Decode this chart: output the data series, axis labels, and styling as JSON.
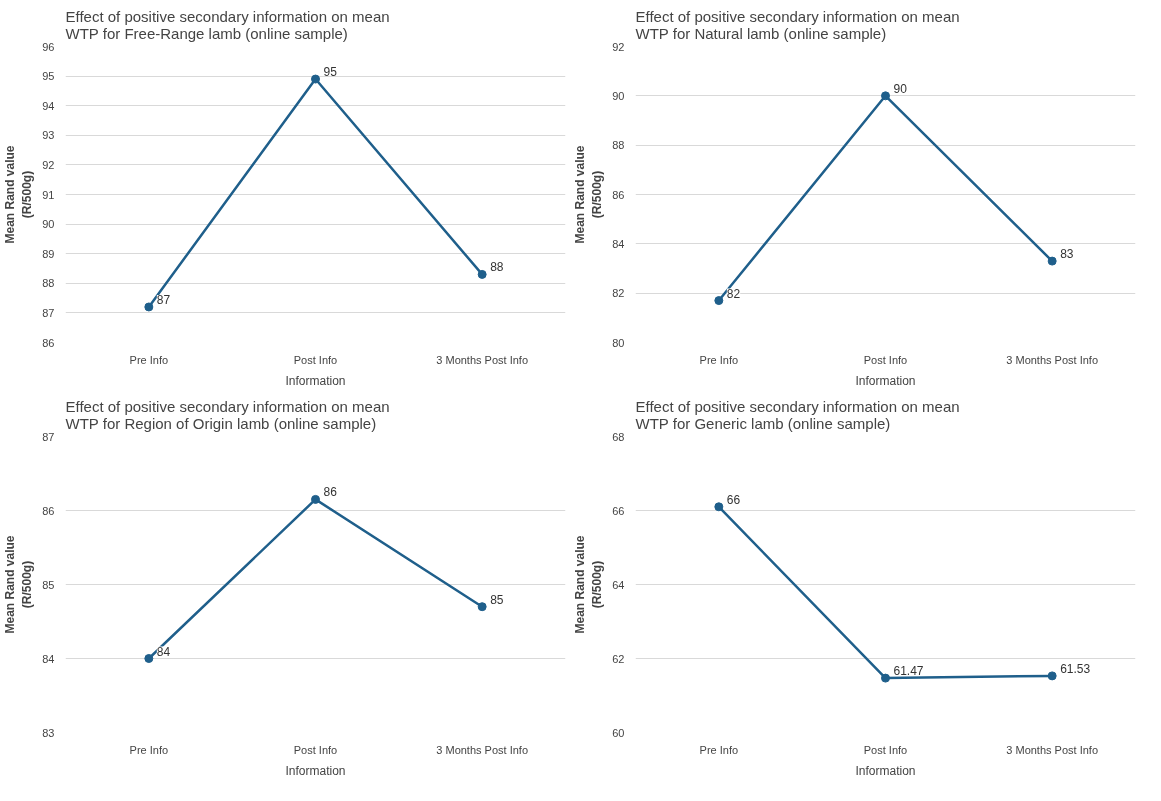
{
  "chart_data": [
    {
      "type": "line",
      "title": "Effect of positive secondary information on mean\nWTP for Free-Range lamb (online sample)",
      "xlabel": "Information",
      "ylabel": "Mean Rand value\n(R/500g)",
      "categories": [
        "Pre Info",
        "Post Info",
        "3 Months Post Info"
      ],
      "series": [
        {
          "color": "#1f5f8b",
          "values": [
            87.2,
            94.9,
            88.3
          ],
          "value_labels": [
            "87",
            "95",
            "88"
          ]
        }
      ],
      "ylim": [
        86,
        96
      ],
      "yticks": [
        86,
        87,
        88,
        89,
        90,
        91,
        92,
        93,
        94,
        95,
        96
      ],
      "grid": "y",
      "marker": "circle",
      "line_style": "solid"
    },
    {
      "type": "line",
      "title": "Effect of positive secondary information on mean\nWTP for Natural lamb (online sample)",
      "xlabel": "Information",
      "ylabel": "Mean Rand value\n(R/500g)",
      "categories": [
        "Pre Info",
        "Post Info",
        "3 Months Post Info"
      ],
      "series": [
        {
          "color": "#1f5f8b",
          "values": [
            81.7,
            90.0,
            83.3
          ],
          "value_labels": [
            "82",
            "90",
            "83"
          ]
        }
      ],
      "ylim": [
        80,
        92
      ],
      "yticks": [
        80,
        82,
        84,
        86,
        88,
        90,
        92
      ],
      "grid": "y",
      "marker": "circle",
      "line_style": "solid"
    },
    {
      "type": "line",
      "title": "Effect of positive secondary information on mean\nWTP for Region of Origin lamb (online sample)",
      "xlabel": "Information",
      "ylabel": "Mean Rand value\n(R/500g)",
      "categories": [
        "Pre Info",
        "Post Info",
        "3 Months Post Info"
      ],
      "series": [
        {
          "color": "#1f5f8b",
          "values": [
            84.0,
            86.15,
            84.7
          ],
          "value_labels": [
            "84",
            "86",
            "85"
          ]
        }
      ],
      "ylim": [
        83,
        87
      ],
      "yticks": [
        83,
        84,
        85,
        86,
        87
      ],
      "grid": "y",
      "marker": "circle",
      "line_style": "solid"
    },
    {
      "type": "line",
      "title": "Effect of positive secondary information on mean\nWTP for Generic lamb (online sample)",
      "xlabel": "Information",
      "ylabel": "Mean Rand value\n(R/500g)",
      "categories": [
        "Pre Info",
        "Post Info",
        "3 Months Post Info"
      ],
      "series": [
        {
          "color": "#1f5f8b",
          "values": [
            66.1,
            61.47,
            61.53
          ],
          "value_labels": [
            "66",
            "61.47",
            "61.53"
          ]
        }
      ],
      "ylim": [
        60,
        68
      ],
      "yticks": [
        60,
        62,
        64,
        66,
        68
      ],
      "grid": "y",
      "marker": "circle",
      "line_style": "solid"
    }
  ]
}
